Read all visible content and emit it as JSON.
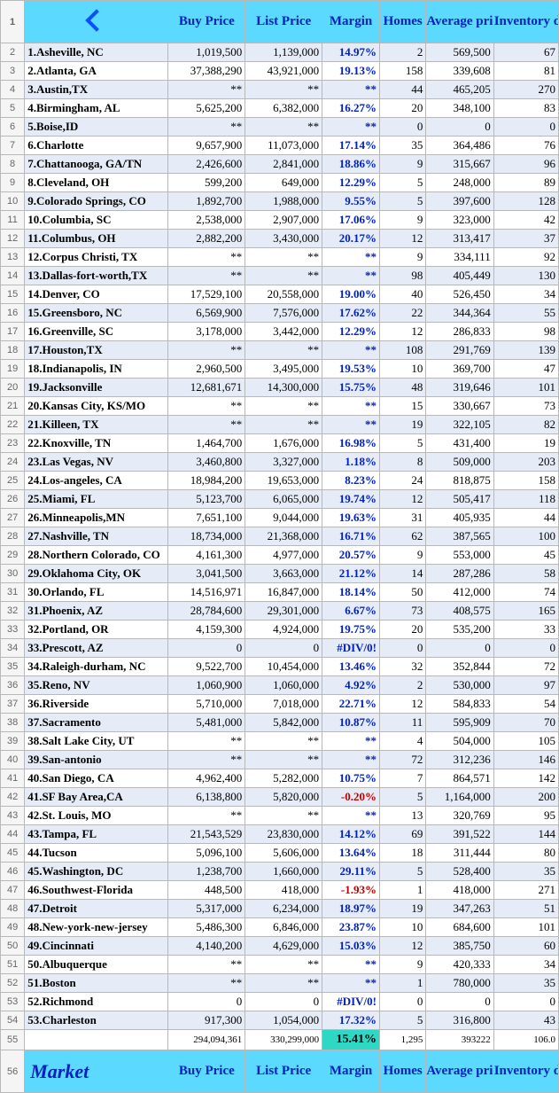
{
  "headers": {
    "buy": "Buy Price",
    "list": "List Price",
    "margin": "Margin",
    "homes": "Homes",
    "avg": "Average price",
    "inv": "Inventory days",
    "market": "Market"
  },
  "totals": {
    "buy": "294,094,361",
    "list": "330,299,000",
    "margin": "15.41%",
    "homes": "1,295",
    "avg": "393222",
    "inv": "106.0"
  },
  "rows": [
    {
      "n": "1",
      "city": "Asheville, NC",
      "buy": "1,019,500",
      "list": "1,139,000",
      "margin": "14.97%",
      "homes": "2",
      "avg": "569,500",
      "inv": "67"
    },
    {
      "n": "2",
      "city": "Atlanta, GA",
      "buy": "37,388,290",
      "list": "43,921,000",
      "margin": "19.13%",
      "homes": "158",
      "avg": "339,608",
      "inv": "81"
    },
    {
      "n": "3",
      "city": "Austin,TX",
      "buy": "**",
      "list": "**",
      "margin": "**",
      "homes": "44",
      "avg": "465,205",
      "inv": "270"
    },
    {
      "n": "4",
      "city": "Birmingham, AL",
      "buy": "5,625,200",
      "list": "6,382,000",
      "margin": "16.27%",
      "homes": "20",
      "avg": "348,100",
      "inv": "83"
    },
    {
      "n": "5",
      "city": "Boise,ID",
      "buy": "**",
      "list": "**",
      "margin": "**",
      "homes": "0",
      "avg": "0",
      "inv": "0"
    },
    {
      "n": "6",
      "city": "Charlotte",
      "buy": "9,657,900",
      "list": "11,073,000",
      "margin": "17.14%",
      "homes": "35",
      "avg": "364,486",
      "inv": "76"
    },
    {
      "n": "7",
      "city": "Chattanooga, GA/TN",
      "buy": "2,426,600",
      "list": "2,841,000",
      "margin": "18.86%",
      "homes": "9",
      "avg": "315,667",
      "inv": "96"
    },
    {
      "n": "8",
      "city": "Cleveland, OH",
      "buy": "599,200",
      "list": "649,000",
      "margin": "12.29%",
      "homes": "5",
      "avg": "248,000",
      "inv": "89"
    },
    {
      "n": "9",
      "city": "Colorado Springs, CO",
      "buy": "1,892,700",
      "list": "1,988,000",
      "margin": "9.55%",
      "homes": "5",
      "avg": "397,600",
      "inv": "128"
    },
    {
      "n": "10",
      "city": "Columbia, SC",
      "buy": "2,538,000",
      "list": "2,907,000",
      "margin": "17.06%",
      "homes": "9",
      "avg": "323,000",
      "inv": "42"
    },
    {
      "n": "11",
      "city": "Columbus, OH",
      "buy": "2,882,200",
      "list": "3,430,000",
      "margin": "20.17%",
      "homes": "12",
      "avg": "313,417",
      "inv": "37"
    },
    {
      "n": "12",
      "city": "Corpus Christi, TX",
      "buy": "**",
      "list": "**",
      "margin": "**",
      "homes": "9",
      "avg": "334,111",
      "inv": "92"
    },
    {
      "n": "13",
      "city": "Dallas-fort-worth,TX",
      "buy": "**",
      "list": "**",
      "margin": "**",
      "homes": "98",
      "avg": "405,449",
      "inv": "130"
    },
    {
      "n": "14",
      "city": "Denver, CO",
      "buy": "17,529,100",
      "list": "20,558,000",
      "margin": "19.00%",
      "homes": "40",
      "avg": "526,450",
      "inv": "34"
    },
    {
      "n": "15",
      "city": "Greensboro, NC",
      "buy": "6,569,900",
      "list": "7,576,000",
      "margin": "17.62%",
      "homes": "22",
      "avg": "344,364",
      "inv": "55"
    },
    {
      "n": "16",
      "city": "Greenville, SC",
      "buy": "3,178,000",
      "list": "3,442,000",
      "margin": "12.29%",
      "homes": "12",
      "avg": "286,833",
      "inv": "98"
    },
    {
      "n": "17",
      "city": "Houston,TX",
      "buy": "**",
      "list": "**",
      "margin": "**",
      "homes": "108",
      "avg": "291,769",
      "inv": "139"
    },
    {
      "n": "18",
      "city": "Indianapolis, IN",
      "buy": "2,960,500",
      "list": "3,495,000",
      "margin": "19.53%",
      "homes": "10",
      "avg": "369,700",
      "inv": "47"
    },
    {
      "n": "19",
      "city": "Jacksonville",
      "buy": "12,681,671",
      "list": "14,300,000",
      "margin": "15.75%",
      "homes": "48",
      "avg": "319,646",
      "inv": "101"
    },
    {
      "n": "20",
      "city": "Kansas City, KS/MO",
      "buy": "**",
      "list": "**",
      "margin": "**",
      "homes": "15",
      "avg": "330,667",
      "inv": "73"
    },
    {
      "n": "21",
      "city": "Killeen, TX",
      "buy": "**",
      "list": "**",
      "margin": "**",
      "homes": "19",
      "avg": "322,105",
      "inv": "82"
    },
    {
      "n": "22",
      "city": "Knoxville, TN",
      "buy": "1,464,700",
      "list": "1,676,000",
      "margin": "16.98%",
      "homes": "5",
      "avg": "431,400",
      "inv": "19"
    },
    {
      "n": "23",
      "city": "Las Vegas, NV",
      "buy": "3,460,800",
      "list": "3,327,000",
      "margin": "1.18%",
      "homes": "8",
      "avg": "509,000",
      "inv": "203"
    },
    {
      "n": "24",
      "city": "Los-angeles, CA",
      "buy": "18,984,200",
      "list": "19,653,000",
      "margin": "8.23%",
      "homes": "24",
      "avg": "818,875",
      "inv": "158"
    },
    {
      "n": "25",
      "city": "Miami, FL",
      "buy": "5,123,700",
      "list": "6,065,000",
      "margin": "19.74%",
      "homes": "12",
      "avg": "505,417",
      "inv": "118"
    },
    {
      "n": "26",
      "city": "Minneapolis,MN",
      "buy": "7,651,100",
      "list": "9,044,000",
      "margin": "19.63%",
      "homes": "31",
      "avg": "405,935",
      "inv": "44"
    },
    {
      "n": "27",
      "city": "Nashville, TN",
      "buy": "18,734,000",
      "list": "21,368,000",
      "margin": "16.71%",
      "homes": "62",
      "avg": "387,565",
      "inv": "100"
    },
    {
      "n": "28",
      "city": "Northern Colorado, CO",
      "buy": "4,161,300",
      "list": "4,977,000",
      "margin": "20.57%",
      "homes": "9",
      "avg": "553,000",
      "inv": "45"
    },
    {
      "n": "29",
      "city": "Oklahoma City, OK",
      "buy": "3,041,500",
      "list": "3,663,000",
      "margin": "21.12%",
      "homes": "14",
      "avg": "287,286",
      "inv": "58"
    },
    {
      "n": "30",
      "city": "Orlando, FL",
      "buy": "14,516,971",
      "list": "16,847,000",
      "margin": "18.14%",
      "homes": "50",
      "avg": "412,000",
      "inv": "74"
    },
    {
      "n": "31",
      "city": "Phoenix, AZ",
      "buy": "28,784,600",
      "list": "29,301,000",
      "margin": "6.67%",
      "homes": "73",
      "avg": "408,575",
      "inv": "165"
    },
    {
      "n": "32",
      "city": "Portland, OR",
      "buy": "4,159,300",
      "list": "4,924,000",
      "margin": "19.75%",
      "homes": "20",
      "avg": "535,200",
      "inv": "33"
    },
    {
      "n": "33",
      "city": "Prescott, AZ",
      "buy": "0",
      "list": "0",
      "margin": "#DIV/0!",
      "homes": "0",
      "avg": "0",
      "inv": "0"
    },
    {
      "n": "34",
      "city": "Raleigh-durham, NC",
      "buy": "9,522,700",
      "list": "10,454,000",
      "margin": "13.46%",
      "homes": "32",
      "avg": "352,844",
      "inv": "72"
    },
    {
      "n": "35",
      "city": "Reno, NV",
      "buy": "1,060,900",
      "list": "1,060,000",
      "margin": "4.92%",
      "homes": "2",
      "avg": "530,000",
      "inv": "97"
    },
    {
      "n": "36",
      "city": "Riverside",
      "buy": "5,710,000",
      "list": "7,018,000",
      "margin": "22.71%",
      "homes": "12",
      "avg": "584,833",
      "inv": "54"
    },
    {
      "n": "37",
      "city": "Sacramento",
      "buy": "5,481,000",
      "list": "5,842,000",
      "margin": "10.87%",
      "homes": "11",
      "avg": "595,909",
      "inv": "70"
    },
    {
      "n": "38",
      "city": "Salt Lake City, UT",
      "buy": "**",
      "list": "**",
      "margin": "**",
      "homes": "4",
      "avg": "504,000",
      "inv": "105"
    },
    {
      "n": "39",
      "city": "San-antonio",
      "buy": "**",
      "list": "**",
      "margin": "**",
      "homes": "72",
      "avg": "312,236",
      "inv": "146"
    },
    {
      "n": "40",
      "city": "San Diego, CA",
      "buy": "4,962,400",
      "list": "5,282,000",
      "margin": "10.75%",
      "homes": "7",
      "avg": "864,571",
      "inv": "142"
    },
    {
      "n": "41",
      "city": "SF Bay Area,CA",
      "buy": "6,138,800",
      "list": "5,820,000",
      "margin": "-0.20%",
      "neg": true,
      "homes": "5",
      "avg": "1,164,000",
      "inv": "200"
    },
    {
      "n": "42",
      "city": "St. Louis, MO",
      "buy": "**",
      "list": "**",
      "margin": "**",
      "homes": "13",
      "avg": "320,769",
      "inv": "95"
    },
    {
      "n": "43",
      "city": "Tampa, FL",
      "buy": "21,543,529",
      "list": "23,830,000",
      "margin": "14.12%",
      "homes": "69",
      "avg": "391,522",
      "inv": "144"
    },
    {
      "n": "44",
      "city": "Tucson",
      "buy": "5,096,100",
      "list": "5,606,000",
      "margin": "13.64%",
      "homes": "18",
      "avg": "311,444",
      "inv": "80"
    },
    {
      "n": "45",
      "city": "Washington, DC",
      "buy": "1,238,700",
      "list": "1,660,000",
      "margin": "29.11%",
      "homes": "5",
      "avg": "528,400",
      "inv": "35"
    },
    {
      "n": "46",
      "city": "Southwest-Florida",
      "buy": "448,500",
      "list": "418,000",
      "margin": "-1.93%",
      "neg": true,
      "homes": "1",
      "avg": "418,000",
      "inv": "271"
    },
    {
      "n": "47",
      "city": "Detroit",
      "buy": "5,317,000",
      "list": "6,234,000",
      "margin": "18.97%",
      "homes": "19",
      "avg": "347,263",
      "inv": "51"
    },
    {
      "n": "48",
      "city": "New-york-new-jersey",
      "buy": "5,486,300",
      "list": "6,846,000",
      "margin": "23.87%",
      "homes": "10",
      "avg": "684,600",
      "inv": "101"
    },
    {
      "n": "49",
      "city": "Cincinnati",
      "buy": "4,140,200",
      "list": "4,629,000",
      "margin": "15.03%",
      "homes": "12",
      "avg": "385,750",
      "inv": "60"
    },
    {
      "n": "50",
      "city": "Albuquerque",
      "buy": "**",
      "list": "**",
      "margin": "**",
      "homes": "9",
      "avg": "420,333",
      "inv": "34"
    },
    {
      "n": "51",
      "city": "Boston",
      "buy": "**",
      "list": "**",
      "margin": "**",
      "homes": "1",
      "avg": "780,000",
      "inv": "35"
    },
    {
      "n": "52",
      "city": "Richmond",
      "buy": "0",
      "list": "0",
      "margin": "#DIV/0!",
      "homes": "0",
      "avg": "0",
      "inv": "0"
    },
    {
      "n": "53",
      "city": "Charleston",
      "buy": "917,300",
      "list": "1,054,000",
      "margin": "17.32%",
      "homes": "5",
      "avg": "316,800",
      "inv": "43"
    }
  ]
}
